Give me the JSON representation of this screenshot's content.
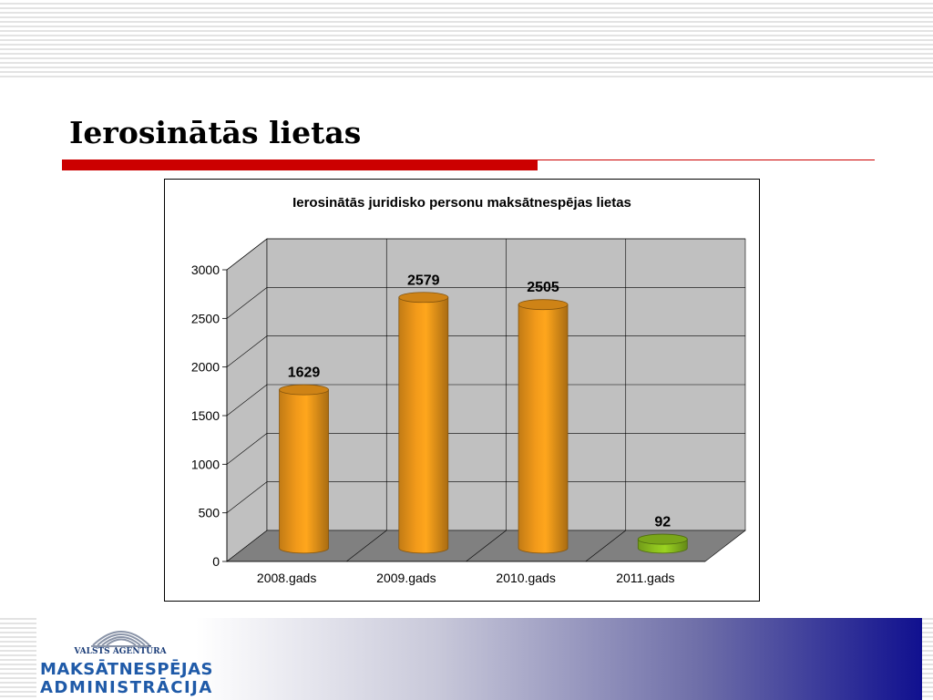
{
  "slide": {
    "title": "Ierosinātās lietas"
  },
  "chart_data": {
    "type": "bar",
    "title": "Ierosinātās juridisko personu maksātnespējas lietas",
    "categories": [
      "2008.gads",
      "2009.gads",
      "2010.gads",
      "2011.gads"
    ],
    "values": [
      1629,
      2579,
      2505,
      92
    ],
    "data_labels": [
      "1629",
      "2579",
      "2505",
      "92"
    ],
    "bar_colors": [
      "#f29a1a",
      "#f29a1a",
      "#f29a1a",
      "#8fc31f"
    ],
    "ylim": [
      0,
      3000
    ],
    "y_ticks": [
      "0",
      "500",
      "1000",
      "1500",
      "2000",
      "2500",
      "3000"
    ],
    "grid": true,
    "style": "3d-cylinder"
  },
  "logo": {
    "small_text": "VALSTS AGENTŪRA",
    "line1": "MAKSĀTNESPĒJAS",
    "line2": "ADMINISTRĀCIJA"
  },
  "colors": {
    "accent_red": "#cc0000",
    "wall": "#c0c0c0",
    "floor": "#808080",
    "footer_blue": "#10108f"
  }
}
